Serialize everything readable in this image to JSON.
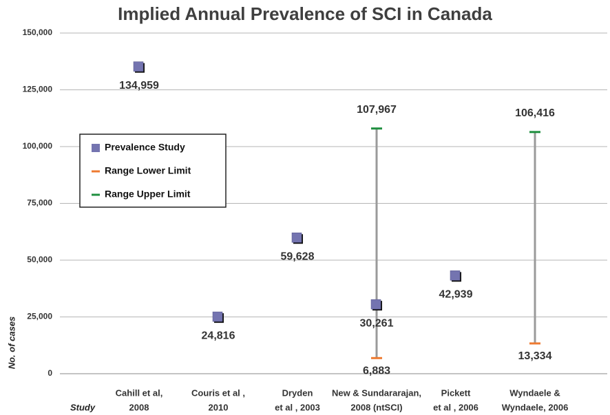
{
  "chart_data": {
    "type": "range-scatter",
    "title": "Implied Annual Prevalence of SCI in Canada",
    "x_label": "Study",
    "y_label": "No. of cases",
    "categories": [
      [
        "Cahill et al,",
        "2008"
      ],
      [
        "Couris et al ,",
        "2010"
      ],
      [
        "Dryden",
        "et al , 2003"
      ],
      [
        "New & Sundararajan,",
        "2008 (ntSCI)"
      ],
      [
        "Pickett",
        "et al , 2006"
      ],
      [
        "Wyndaele &",
        "Wyndaele, 2006"
      ]
    ],
    "series": [
      {
        "name": "Prevalence Study",
        "color": "#7474b0",
        "marker": "square",
        "values": [
          134959,
          24816,
          59628,
          30261,
          42939,
          null
        ],
        "value_labels": [
          "134,959",
          "24,816",
          "59,628",
          "30,261",
          "42,939",
          null
        ]
      },
      {
        "name": "Range Lower Limit",
        "color": "#ee7a30",
        "marker": "dash",
        "values": [
          null,
          null,
          null,
          6883,
          null,
          13334
        ],
        "value_labels": [
          null,
          null,
          null,
          "6,883",
          null,
          "13,334"
        ]
      },
      {
        "name": "Range Upper Limit",
        "color": "#1f8f3f",
        "marker": "dash",
        "values": [
          null,
          null,
          null,
          107967,
          null,
          106416
        ],
        "value_labels": [
          null,
          null,
          null,
          "107,967",
          null,
          "106,416"
        ]
      }
    ],
    "range_color": "#9a9a9a",
    "ylim": [
      0,
      150000
    ],
    "yticks": [
      {
        "value": 0,
        "label": "0"
      },
      {
        "value": 25000,
        "label": "25,000"
      },
      {
        "value": 50000,
        "label": "50,000"
      },
      {
        "value": 75000,
        "label": "75,000"
      },
      {
        "value": 100000,
        "label": "100,000"
      },
      {
        "value": 125000,
        "label": "125,000"
      },
      {
        "value": 150000,
        "label": "150,000"
      }
    ],
    "grid": true
  }
}
